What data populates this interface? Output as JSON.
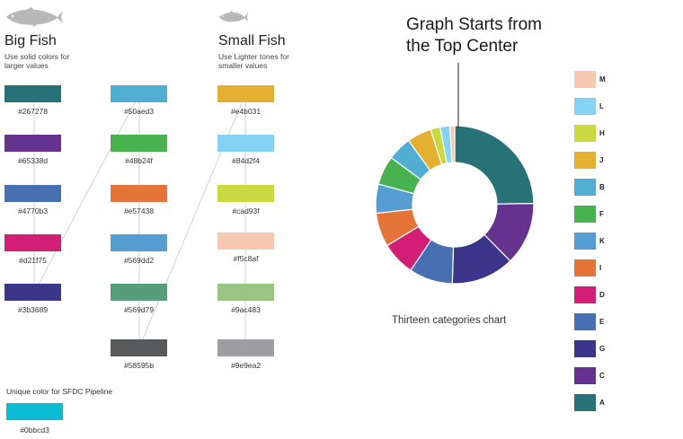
{
  "big_fish": {
    "title": "Big Fish",
    "subtitle": "Use solid colors for larger values",
    "icon": "fish-icon",
    "columns": [
      [
        {
          "hex": "#267278",
          "color": "#267278"
        },
        {
          "hex": "#65338d",
          "color": "#65338d"
        },
        {
          "hex": "#4770b3",
          "color": "#4770b3"
        },
        {
          "hex": "#d21f75",
          "color": "#d21f75"
        },
        {
          "hex": "#3b3689",
          "color": "#3b3689"
        }
      ],
      [
        {
          "hex": "#50aed3",
          "color": "#50aed3"
        },
        {
          "hex": "#48b24f",
          "color": "#48b24f"
        },
        {
          "hex": "#e57438",
          "color": "#e57438"
        },
        {
          "hex": "#569dd2",
          "color": "#569dd2"
        },
        {
          "hex": "#569d79",
          "color": "#569d79"
        },
        {
          "hex": "#58595b",
          "color": "#58595b"
        }
      ]
    ]
  },
  "small_fish": {
    "title": "Small Fish",
    "subtitle": "Use Lighter tones for smaller values",
    "icon": "small-fish-icon",
    "swatches": [
      {
        "hex": "#e4b031",
        "color": "#e4b031"
      },
      {
        "hex": "#84d2f4",
        "color": "#84d2f4"
      },
      {
        "hex": "#cad93f",
        "color": "#cad93f"
      },
      {
        "hex": "#f5c8af",
        "color": "#f5c8af"
      },
      {
        "hex": "#9ac483",
        "color": "#9ac483"
      },
      {
        "hex": "#9e9ea2",
        "color": "#9e9ea2"
      }
    ]
  },
  "pipeline": {
    "note": "Unique color for SFDC Pipeline",
    "hex": "#0bbcd3",
    "color": "#0bbcd3"
  },
  "annotation": "Graph Starts from\nthe Top Center",
  "chart_data": {
    "type": "pie",
    "subtype": "donut",
    "title": "Thirteen categories chart",
    "start_angle": "top-center",
    "direction": "clockwise",
    "legend_position": "right",
    "categories": [
      "A",
      "C",
      "G",
      "E",
      "D",
      "I",
      "K",
      "F",
      "B",
      "J",
      "H",
      "L",
      "M"
    ],
    "values": [
      25,
      13,
      13,
      9,
      7,
      7,
      6,
      6,
      5,
      5,
      2,
      2,
      1
    ],
    "colors": [
      "#267278",
      "#65338d",
      "#3b3689",
      "#4770b3",
      "#d21f75",
      "#e57438",
      "#569dd2",
      "#48b24f",
      "#50aed3",
      "#e4b031",
      "#cad93f",
      "#84d2f4",
      "#f5c8af"
    ],
    "legend": [
      {
        "label": "M",
        "color": "#f5c8af"
      },
      {
        "label": "L",
        "color": "#84d2f4"
      },
      {
        "label": "H",
        "color": "#cad93f"
      },
      {
        "label": "J",
        "color": "#e4b031"
      },
      {
        "label": "B",
        "color": "#50aed3"
      },
      {
        "label": "F",
        "color": "#48b24f"
      },
      {
        "label": "K",
        "color": "#569dd2"
      },
      {
        "label": "I",
        "color": "#e57438"
      },
      {
        "label": "D",
        "color": "#d21f75"
      },
      {
        "label": "E",
        "color": "#4770b3"
      },
      {
        "label": "G",
        "color": "#3b3689"
      },
      {
        "label": "C",
        "color": "#65338d"
      },
      {
        "label": "A",
        "color": "#267278"
      }
    ]
  }
}
